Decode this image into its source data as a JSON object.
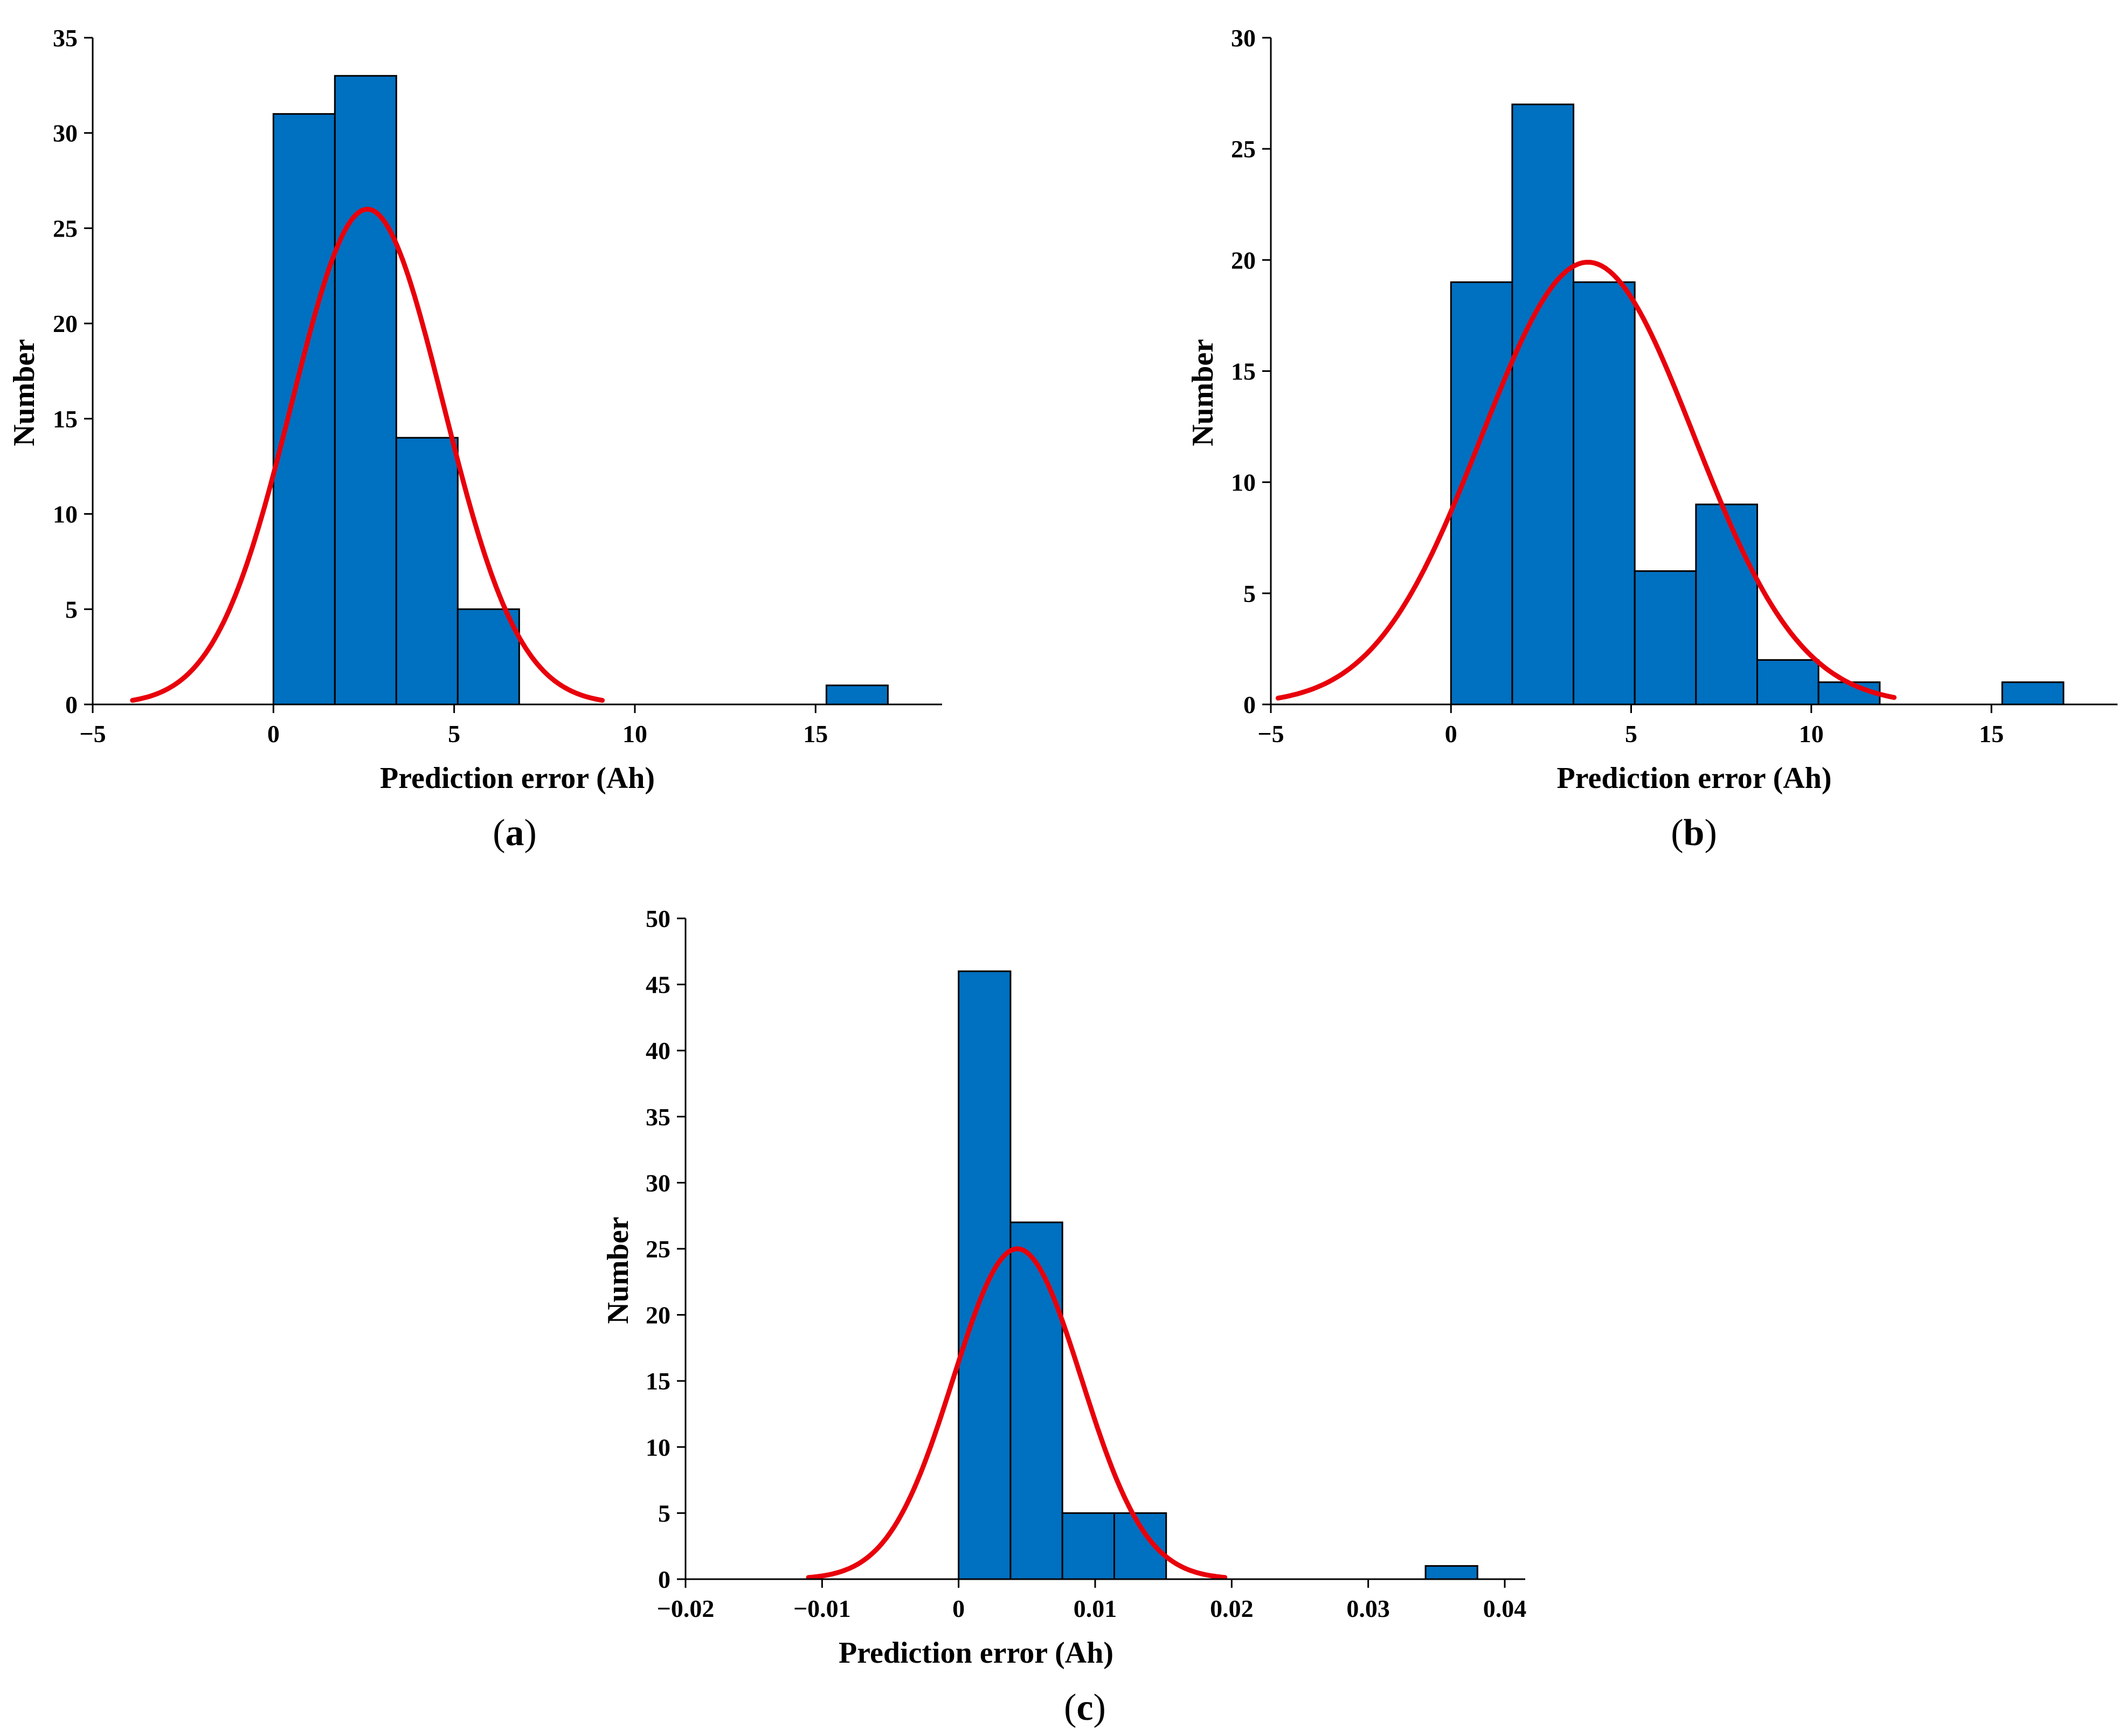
{
  "colors": {
    "bar": "#0070c0",
    "curve": "#e8000b",
    "axis": "#000000"
  },
  "chart_data": [
    {
      "type": "bar",
      "panel_label": "a",
      "xlabel": "Prediction error (Ah)",
      "ylabel": "Number",
      "xlim": [
        -5,
        18.5
      ],
      "ylim": [
        0,
        35
      ],
      "xticks": [
        -5,
        0,
        5,
        10,
        15
      ],
      "xtick_labels": [
        "−5",
        "0",
        "5",
        "10",
        "15"
      ],
      "yticks": [
        0,
        5,
        10,
        15,
        20,
        25,
        30,
        35
      ],
      "ytick_labels": [
        "0",
        "5",
        "10",
        "15",
        "20",
        "25",
        "30",
        "35"
      ],
      "bins": [
        {
          "x0": 0,
          "x1": 1.7,
          "count": 31
        },
        {
          "x0": 1.7,
          "x1": 3.4,
          "count": 33
        },
        {
          "x0": 3.4,
          "x1": 5.1,
          "count": 14
        },
        {
          "x0": 5.1,
          "x1": 6.8,
          "count": 5
        },
        {
          "x0": 15.3,
          "x1": 17.0,
          "count": 1
        }
      ],
      "fit": {
        "type": "normal",
        "peak": 26,
        "mean": 2.6,
        "sd": 2.1,
        "x_range": [
          -3.9,
          9.1
        ]
      },
      "grid": false
    },
    {
      "type": "bar",
      "panel_label": "b",
      "xlabel": "Prediction error (Ah)",
      "ylabel": "Number",
      "xlim": [
        -5,
        18.5
      ],
      "ylim": [
        0,
        30
      ],
      "xticks": [
        -5,
        0,
        5,
        10,
        15
      ],
      "xtick_labels": [
        "−5",
        "0",
        "5",
        "10",
        "15"
      ],
      "yticks": [
        0,
        5,
        10,
        15,
        20,
        25,
        30
      ],
      "ytick_labels": [
        "0",
        "5",
        "10",
        "15",
        "20",
        "25",
        "30"
      ],
      "bins": [
        {
          "x0": 0,
          "x1": 1.7,
          "count": 19
        },
        {
          "x0": 1.7,
          "x1": 3.4,
          "count": 27
        },
        {
          "x0": 3.4,
          "x1": 5.1,
          "count": 19
        },
        {
          "x0": 5.1,
          "x1": 6.8,
          "count": 6
        },
        {
          "x0": 6.8,
          "x1": 8.5,
          "count": 9
        },
        {
          "x0": 8.5,
          "x1": 10.2,
          "count": 2
        },
        {
          "x0": 10.2,
          "x1": 11.9,
          "count": 1
        },
        {
          "x0": 15.3,
          "x1": 17.0,
          "count": 1
        }
      ],
      "fit": {
        "type": "normal",
        "peak": 19.9,
        "mean": 3.8,
        "sd": 2.95,
        "x_range": [
          -4.8,
          12.3
        ]
      },
      "grid": false
    },
    {
      "type": "bar",
      "panel_label": "c",
      "xlabel": "Prediction error (Ah)",
      "ylabel": "Number",
      "xlim": [
        -0.02,
        0.0415
      ],
      "ylim": [
        0,
        50
      ],
      "xticks": [
        -0.02,
        -0.01,
        0,
        0.01,
        0.02,
        0.03,
        0.04
      ],
      "xtick_labels": [
        "−0.02",
        "−0.01",
        "0",
        "0.01",
        "0.02",
        "0.03",
        "0.04"
      ],
      "yticks": [
        0,
        5,
        10,
        15,
        20,
        25,
        30,
        35,
        40,
        45,
        50
      ],
      "ytick_labels": [
        "0",
        "5",
        "10",
        "15",
        "20",
        "25",
        "30",
        "35",
        "40",
        "45",
        "50"
      ],
      "bins": [
        {
          "x0": 0,
          "x1": 0.0038,
          "count": 46
        },
        {
          "x0": 0.0038,
          "x1": 0.0076,
          "count": 27
        },
        {
          "x0": 0.0076,
          "x1": 0.0114,
          "count": 5
        },
        {
          "x0": 0.0114,
          "x1": 0.0152,
          "count": 5
        },
        {
          "x0": 0.0342,
          "x1": 0.038,
          "count": 1
        }
      ],
      "fit": {
        "type": "normal",
        "peak": 25,
        "mean": 0.0043,
        "sd": 0.0047,
        "x_range": [
          -0.011,
          0.0195
        ]
      },
      "grid": false
    }
  ]
}
